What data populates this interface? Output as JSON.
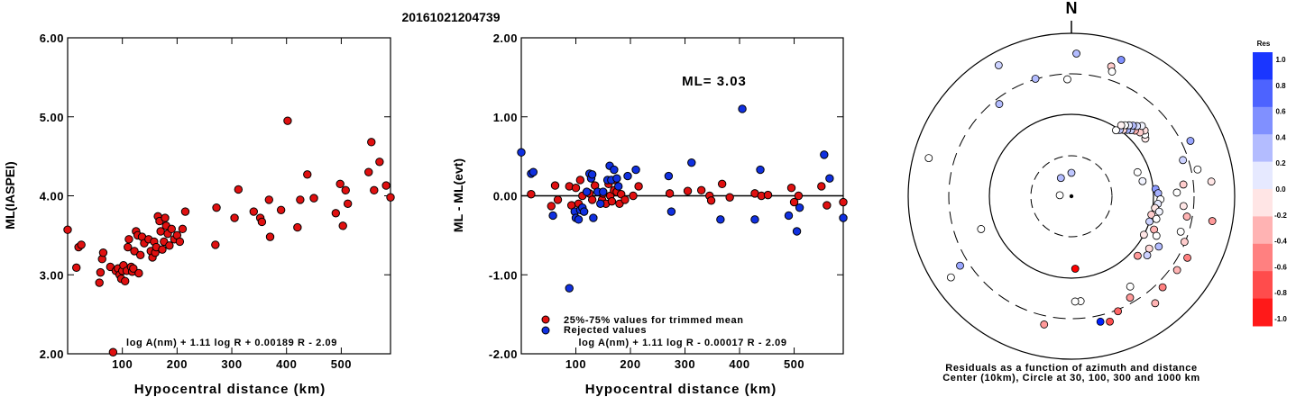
{
  "title": "20161021204739",
  "chart_data": [
    {
      "type": "scatter",
      "ylabel": "ML(IASPEI)",
      "xlabel": "Hypocentral distance (km)",
      "xlim": [
        0,
        590
      ],
      "ylim": [
        2.0,
        6.0
      ],
      "x_ticks": [
        "100",
        "200",
        "300",
        "400",
        "500"
      ],
      "y_ticks": [
        "2.00",
        "3.00",
        "4.00",
        "5.00",
        "6.00"
      ],
      "formula": "log A(nm) + 1.11 log R + 0.00189 R - 2.09",
      "points_color": "#e01010",
      "points": [
        [
          0,
          3.57
        ],
        [
          16,
          3.09
        ],
        [
          20,
          3.35
        ],
        [
          25,
          3.38
        ],
        [
          58,
          2.9
        ],
        [
          60,
          3.03
        ],
        [
          63,
          3.2
        ],
        [
          65,
          3.28
        ],
        [
          78,
          3.1
        ],
        [
          83,
          2.02
        ],
        [
          88,
          3.05
        ],
        [
          92,
          3.08
        ],
        [
          95,
          3.0
        ],
        [
          98,
          2.95
        ],
        [
          100,
          3.05
        ],
        [
          102,
          3.12
        ],
        [
          105,
          2.92
        ],
        [
          108,
          3.05
        ],
        [
          110,
          3.35
        ],
        [
          112,
          3.45
        ],
        [
          116,
          3.1
        ],
        [
          118,
          3.04
        ],
        [
          120,
          3.08
        ],
        [
          122,
          3.3
        ],
        [
          125,
          3.55
        ],
        [
          128,
          3.5
        ],
        [
          130,
          3.02
        ],
        [
          133,
          3.25
        ],
        [
          136,
          3.48
        ],
        [
          140,
          3.4
        ],
        [
          148,
          3.45
        ],
        [
          152,
          3.3
        ],
        [
          155,
          3.22
        ],
        [
          158,
          3.42
        ],
        [
          160,
          3.28
        ],
        [
          162,
          3.35
        ],
        [
          165,
          3.74
        ],
        [
          168,
          3.68
        ],
        [
          170,
          3.55
        ],
        [
          173,
          3.32
        ],
        [
          176,
          3.42
        ],
        [
          178,
          3.72
        ],
        [
          180,
          3.62
        ],
        [
          183,
          3.52
        ],
        [
          186,
          3.37
        ],
        [
          190,
          3.58
        ],
        [
          195,
          3.45
        ],
        [
          200,
          3.5
        ],
        [
          205,
          3.42
        ],
        [
          210,
          3.58
        ],
        [
          215,
          3.8
        ],
        [
          270,
          3.38
        ],
        [
          272,
          3.85
        ],
        [
          305,
          3.72
        ],
        [
          312,
          4.08
        ],
        [
          340,
          3.8
        ],
        [
          352,
          3.72
        ],
        [
          355,
          3.67
        ],
        [
          368,
          3.95
        ],
        [
          370,
          3.48
        ],
        [
          390,
          3.82
        ],
        [
          402,
          4.95
        ],
        [
          420,
          3.6
        ],
        [
          425,
          3.95
        ],
        [
          438,
          4.27
        ],
        [
          450,
          3.97
        ],
        [
          490,
          3.78
        ],
        [
          498,
          4.15
        ],
        [
          503,
          3.62
        ],
        [
          508,
          4.07
        ],
        [
          512,
          3.9
        ],
        [
          550,
          4.3
        ],
        [
          555,
          4.68
        ],
        [
          560,
          4.07
        ],
        [
          570,
          4.43
        ],
        [
          582,
          4.13
        ],
        [
          592,
          3.98
        ]
      ]
    },
    {
      "type": "scatter",
      "ylabel": "ML - ML(evt)",
      "xlabel": "Hypocentral distance (km)",
      "xlim": [
        0,
        590
      ],
      "ylim": [
        -2.0,
        2.0
      ],
      "x_ticks": [
        "100",
        "200",
        "300",
        "400",
        "500"
      ],
      "y_ticks": [
        "-2.00",
        "-1.00",
        "0.00",
        "1.00",
        "2.00"
      ],
      "annotation": "ML= 3.03",
      "legend": [
        {
          "label": "25%-75% values for trimmed mean",
          "color": "#e01010"
        },
        {
          "label": "Rejected values",
          "color": "#1030e0"
        }
      ],
      "formula": "log A(nm) + 1.11 log R - 0.00017 R - 2.09",
      "red_points": [
        [
          18,
          0.02
        ],
        [
          55,
          -0.13
        ],
        [
          62,
          0.13
        ],
        [
          67,
          -0.05
        ],
        [
          88,
          0.12
        ],
        [
          92,
          -0.12
        ],
        [
          100,
          0.1
        ],
        [
          105,
          -0.1
        ],
        [
          108,
          0.2
        ],
        [
          112,
          0.0
        ],
        [
          115,
          -0.2
        ],
        [
          125,
          0.03
        ],
        [
          130,
          -0.05
        ],
        [
          135,
          0.13
        ],
        [
          148,
          -0.05
        ],
        [
          150,
          0.03
        ],
        [
          155,
          -0.1
        ],
        [
          160,
          0.15
        ],
        [
          163,
          0.0
        ],
        [
          166,
          -0.07
        ],
        [
          170,
          0.07
        ],
        [
          172,
          0.2
        ],
        [
          175,
          0.05
        ],
        [
          180,
          -0.1
        ],
        [
          183,
          0.02
        ],
        [
          190,
          -0.05
        ],
        [
          205,
          0.0
        ],
        [
          215,
          0.12
        ],
        [
          272,
          0.03
        ],
        [
          305,
          0.06
        ],
        [
          330,
          0.07
        ],
        [
          345,
          0.0
        ],
        [
          348,
          -0.06
        ],
        [
          368,
          0.15
        ],
        [
          382,
          -0.02
        ],
        [
          428,
          0.03
        ],
        [
          440,
          0.0
        ],
        [
          452,
          0.01
        ],
        [
          495,
          0.1
        ],
        [
          500,
          -0.08
        ],
        [
          508,
          0.0
        ],
        [
          550,
          0.12
        ],
        [
          560,
          -0.12
        ],
        [
          590,
          -0.08
        ]
      ],
      "blue_points": [
        [
          0,
          0.55
        ],
        [
          18,
          0.28
        ],
        [
          22,
          0.3
        ],
        [
          58,
          -0.25
        ],
        [
          88,
          -1.17
        ],
        [
          98,
          -0.2
        ],
        [
          100,
          -0.28
        ],
        [
          105,
          -0.3
        ],
        [
          108,
          -0.18
        ],
        [
          112,
          -0.15
        ],
        [
          115,
          -0.2
        ],
        [
          120,
          0.05
        ],
        [
          125,
          0.28
        ],
        [
          128,
          0.22
        ],
        [
          130,
          0.27
        ],
        [
          132,
          -0.28
        ],
        [
          140,
          0.05
        ],
        [
          145,
          -0.1
        ],
        [
          150,
          0.05
        ],
        [
          158,
          0.2
        ],
        [
          162,
          0.38
        ],
        [
          165,
          0.2
        ],
        [
          170,
          0.33
        ],
        [
          175,
          0.22
        ],
        [
          178,
          0.12
        ],
        [
          195,
          0.25
        ],
        [
          210,
          0.33
        ],
        [
          270,
          0.25
        ],
        [
          275,
          -0.2
        ],
        [
          312,
          0.42
        ],
        [
          365,
          -0.3
        ],
        [
          405,
          1.1
        ],
        [
          428,
          -0.3
        ],
        [
          438,
          0.33
        ],
        [
          490,
          -0.25
        ],
        [
          505,
          -0.45
        ],
        [
          510,
          -0.15
        ],
        [
          555,
          0.52
        ],
        [
          565,
          0.22
        ],
        [
          590,
          -0.28
        ]
      ]
    },
    {
      "type": "scatter",
      "subtype": "polar",
      "north_label": "N",
      "caption_line1": "Residuals as a function of azimuth and distance",
      "caption_line2": "Center (10km), Circle at 30, 100, 300 and 1000 km",
      "colorbar_title": "Res",
      "colorbar_ticks": [
        "1.0",
        "0.8",
        "0.6",
        "0.4",
        "0.2",
        "0.0",
        "-0.2",
        "-0.4",
        "-0.6",
        "-0.8",
        "-1.0"
      ],
      "colorbar_max_color": "#0020ff",
      "colorbar_min_color": "#ff0000",
      "points": [
        {
          "azimuth": 0,
          "distance": 20,
          "res": 0.25
        },
        {
          "azimuth": 330,
          "distance": 18,
          "res": 0.3
        },
        {
          "azimuth": 275,
          "distance": 10,
          "res": 0.0
        },
        {
          "azimuth": 177,
          "distance": 62,
          "res": -1.0
        },
        {
          "azimuth": 52,
          "distance": 80,
          "res": -0.08
        },
        {
          "azimuth": 50,
          "distance": 82,
          "res": 0.0
        },
        {
          "azimuth": 48,
          "distance": 84,
          "res": -0.12
        },
        {
          "azimuth": 47,
          "distance": 80,
          "res": -0.2
        },
        {
          "azimuth": 45,
          "distance": 85,
          "res": 0.05
        },
        {
          "azimuth": 44,
          "distance": 78,
          "res": -0.3
        },
        {
          "azimuth": 43,
          "distance": 82,
          "res": 0.15
        },
        {
          "azimuth": 42,
          "distance": 76,
          "res": 0.2
        },
        {
          "azimuth": 41,
          "distance": 80,
          "res": 0.3
        },
        {
          "azimuth": 40,
          "distance": 74,
          "res": 0.35
        },
        {
          "azimuth": 39,
          "distance": 78,
          "res": 0.1
        },
        {
          "azimuth": 38,
          "distance": 72,
          "res": -0.15
        },
        {
          "azimuth": 37,
          "distance": 76,
          "res": 0.0
        },
        {
          "azimuth": 36,
          "distance": 70,
          "res": 0.25
        },
        {
          "azimuth": 35,
          "distance": 74,
          "res": -0.05
        },
        {
          "azimuth": 34,
          "distance": 68,
          "res": 0.0
        },
        {
          "azimuth": 70,
          "distance": 60,
          "res": 0.0
        },
        {
          "azimuth": 78,
          "distance": 62,
          "res": 0.05
        },
        {
          "azimuth": 85,
          "distance": 72,
          "res": 0.45
        },
        {
          "azimuth": 88,
          "distance": 74,
          "res": 0.35
        },
        {
          "azimuth": 92,
          "distance": 76,
          "res": 0.0
        },
        {
          "azimuth": 95,
          "distance": 74,
          "res": 0.1
        },
        {
          "azimuth": 98,
          "distance": 72,
          "res": -0.1
        },
        {
          "azimuth": 100,
          "distance": 76,
          "res": 0.05
        },
        {
          "azimuth": 103,
          "distance": 70,
          "res": -0.2
        },
        {
          "azimuth": 105,
          "distance": 75,
          "res": 0.0
        },
        {
          "azimuth": 108,
          "distance": 70,
          "res": 0.2
        },
        {
          "azimuth": 112,
          "distance": 76,
          "res": -0.3
        },
        {
          "azimuth": 115,
          "distance": 80,
          "res": 0.0
        },
        {
          "azimuth": 118,
          "distance": 70,
          "res": -0.1
        },
        {
          "azimuth": 120,
          "distance": 86,
          "res": 0.3
        },
        {
          "azimuth": 124,
          "distance": 80,
          "res": -0.15
        },
        {
          "azimuth": 128,
          "distance": 82,
          "res": 0.2
        },
        {
          "azimuth": 132,
          "distance": 76,
          "res": -0.4
        },
        {
          "azimuth": 88,
          "distance": 90,
          "res": 0.0
        },
        {
          "azimuth": 95,
          "distance": 96,
          "res": -0.1
        },
        {
          "azimuth": 100,
          "distance": 100,
          "res": -0.3
        },
        {
          "azimuth": 108,
          "distance": 98,
          "res": 0.0
        },
        {
          "azimuth": 112,
          "distance": 104,
          "res": -0.2
        },
        {
          "azimuth": 118,
          "distance": 112,
          "res": -0.5
        },
        {
          "azimuth": 125,
          "distance": 110,
          "res": -0.3
        },
        {
          "azimuth": 135,
          "distance": 110,
          "res": -0.5
        },
        {
          "azimuth": 142,
          "distance": 116,
          "res": -0.3
        },
        {
          "azimuth": 147,
          "distance": 92,
          "res": 0.0
        },
        {
          "azimuth": 150,
          "distance": 100,
          "res": -0.4
        },
        {
          "azimuth": 158,
          "distance": 106,
          "res": -0.6
        },
        {
          "azimuth": 163,
          "distance": 112,
          "res": -0.7
        },
        {
          "azimuth": 167,
          "distance": 110,
          "res": 1.0
        },
        {
          "azimuth": 175,
          "distance": 90,
          "res": 0.0
        },
        {
          "azimuth": 178,
          "distance": 90,
          "res": 0.0
        },
        {
          "azimuth": 192,
          "distance": 112,
          "res": -0.4
        },
        {
          "azimuth": 72,
          "distance": 100,
          "res": 0.2
        },
        {
          "azimuth": 78,
          "distance": 110,
          "res": 0.0
        },
        {
          "azimuth": 84,
          "distance": 120,
          "res": -0.1
        },
        {
          "azimuth": 84,
          "distance": 96,
          "res": -0.2
        },
        {
          "azimuth": 100,
          "distance": 122,
          "res": -0.4
        },
        {
          "azimuth": 65,
          "distance": 112,
          "res": 0.4
        },
        {
          "azimuth": 20,
          "distance": 124,
          "res": 0.5
        },
        {
          "azimuth": 17,
          "distance": 116,
          "res": -0.2
        },
        {
          "azimuth": 18,
          "distance": 112,
          "res": 0.0
        },
        {
          "azimuth": 2,
          "distance": 122,
          "res": 0.3
        },
        {
          "azimuth": 358,
          "distance": 100,
          "res": 0.0
        },
        {
          "azimuth": 343,
          "distance": 105,
          "res": 0.3
        },
        {
          "azimuth": 331,
          "distance": 128,
          "res": 0.2
        },
        {
          "azimuth": 322,
          "distance": 100,
          "res": 0.3
        },
        {
          "azimuth": 285,
          "distance": 126,
          "res": 0.0
        },
        {
          "azimuth": 250,
          "distance": 82,
          "res": 0.0
        },
        {
          "azimuth": 238,
          "distance": 112,
          "res": 0.4
        },
        {
          "azimuth": 236,
          "distance": 124,
          "res": 0.0
        }
      ]
    }
  ]
}
